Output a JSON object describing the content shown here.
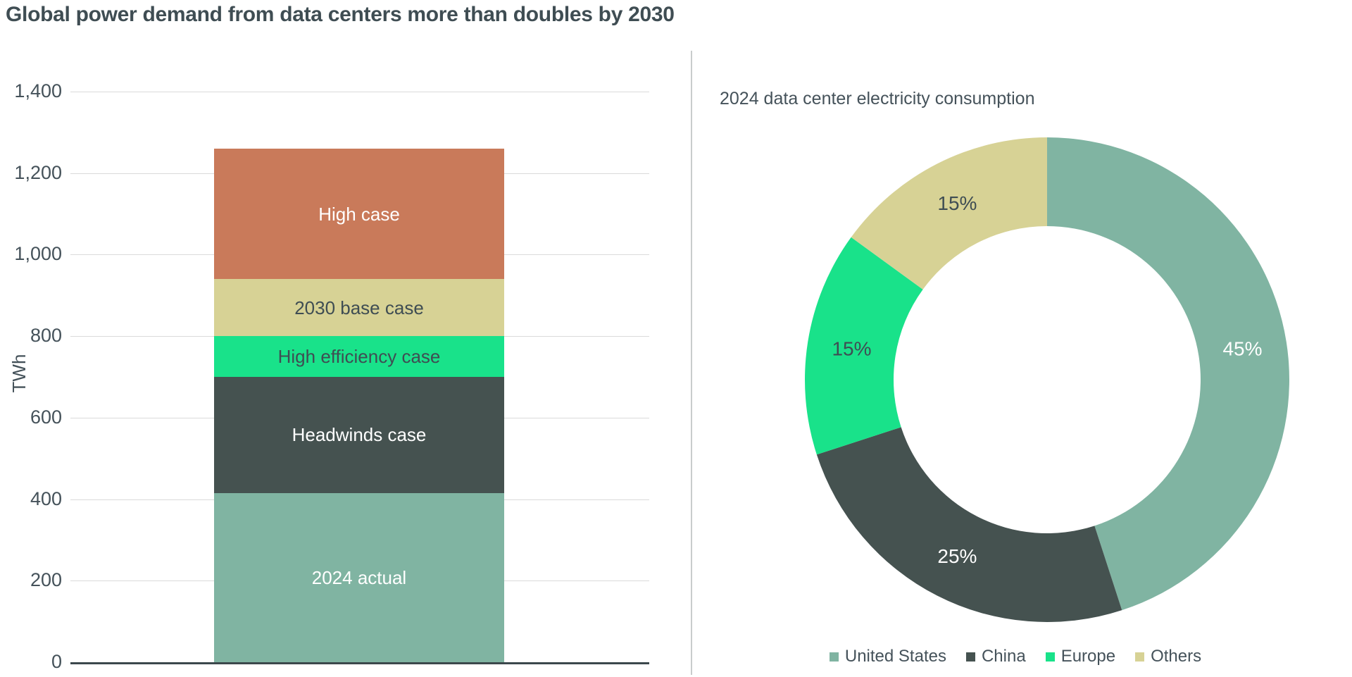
{
  "page_title": "Global power demand from data centers more than doubles by 2030",
  "chart_data": [
    {
      "type": "bar",
      "stacked": true,
      "title": "Global power demand from data centers more than doubles by 2030",
      "xlabel": "",
      "ylabel": "TWh",
      "ymax": 1400,
      "ymin": 0,
      "grid": true,
      "yticks": [
        {
          "value": 0,
          "label": "0"
        },
        {
          "value": 200,
          "label": "200"
        },
        {
          "value": 400,
          "label": "400"
        },
        {
          "value": 600,
          "label": "600"
        },
        {
          "value": 800,
          "label": "800"
        },
        {
          "value": 1000,
          "label": "1,000"
        },
        {
          "value": 1200,
          "label": "1,200"
        },
        {
          "value": 1400,
          "label": "1,400"
        }
      ],
      "segments_bottom_to_top": [
        {
          "label": "2024 actual",
          "value": 415,
          "cumulative_top": 415,
          "color": "#80B4A2",
          "label_color": "#FFFFFF"
        },
        {
          "label": "Headwinds case",
          "value": 285,
          "cumulative_top": 700,
          "color": "#455250",
          "label_color": "#FFFFFF"
        },
        {
          "label": "High efficiency case",
          "value": 100,
          "cumulative_top": 800,
          "color": "#19E28A",
          "label_color": "#3F4D53"
        },
        {
          "label": "2030 base case",
          "value": 140,
          "cumulative_top": 940,
          "color": "#D7D295",
          "label_color": "#3F4D53"
        },
        {
          "label": "High case",
          "value": 320,
          "cumulative_top": 1260,
          "color": "#C97A5A",
          "label_color": "#FFFFFF"
        }
      ]
    },
    {
      "type": "pie",
      "subtype": "donut",
      "title": "2024 data center electricity consumption",
      "start_angle": "12 o'clock",
      "direction": "clockwise",
      "inner_radius_ratio": 0.63,
      "legend_position": "bottom",
      "slices": [
        {
          "label": "United States",
          "pct": 45,
          "data_label": "45%",
          "color": "#80B4A2",
          "label_color": "#FFFFFF"
        },
        {
          "label": "China",
          "pct": 25,
          "data_label": "25%",
          "color": "#455250",
          "label_color": "#FFFFFF"
        },
        {
          "label": "Europe",
          "pct": 15,
          "data_label": "15%",
          "color": "#19E28A",
          "label_color": "#3F4D53"
        },
        {
          "label": "Others",
          "pct": 15,
          "data_label": "15%",
          "color": "#D7D295",
          "label_color": "#3F4D53"
        }
      ]
    }
  ],
  "colors": {
    "background": "#FFFFFF",
    "text": "#45525A",
    "title_text": "#3F4D53",
    "gridline": "#DADADA",
    "axis_line": "#3C484C",
    "divider": "#C9CCCC"
  }
}
